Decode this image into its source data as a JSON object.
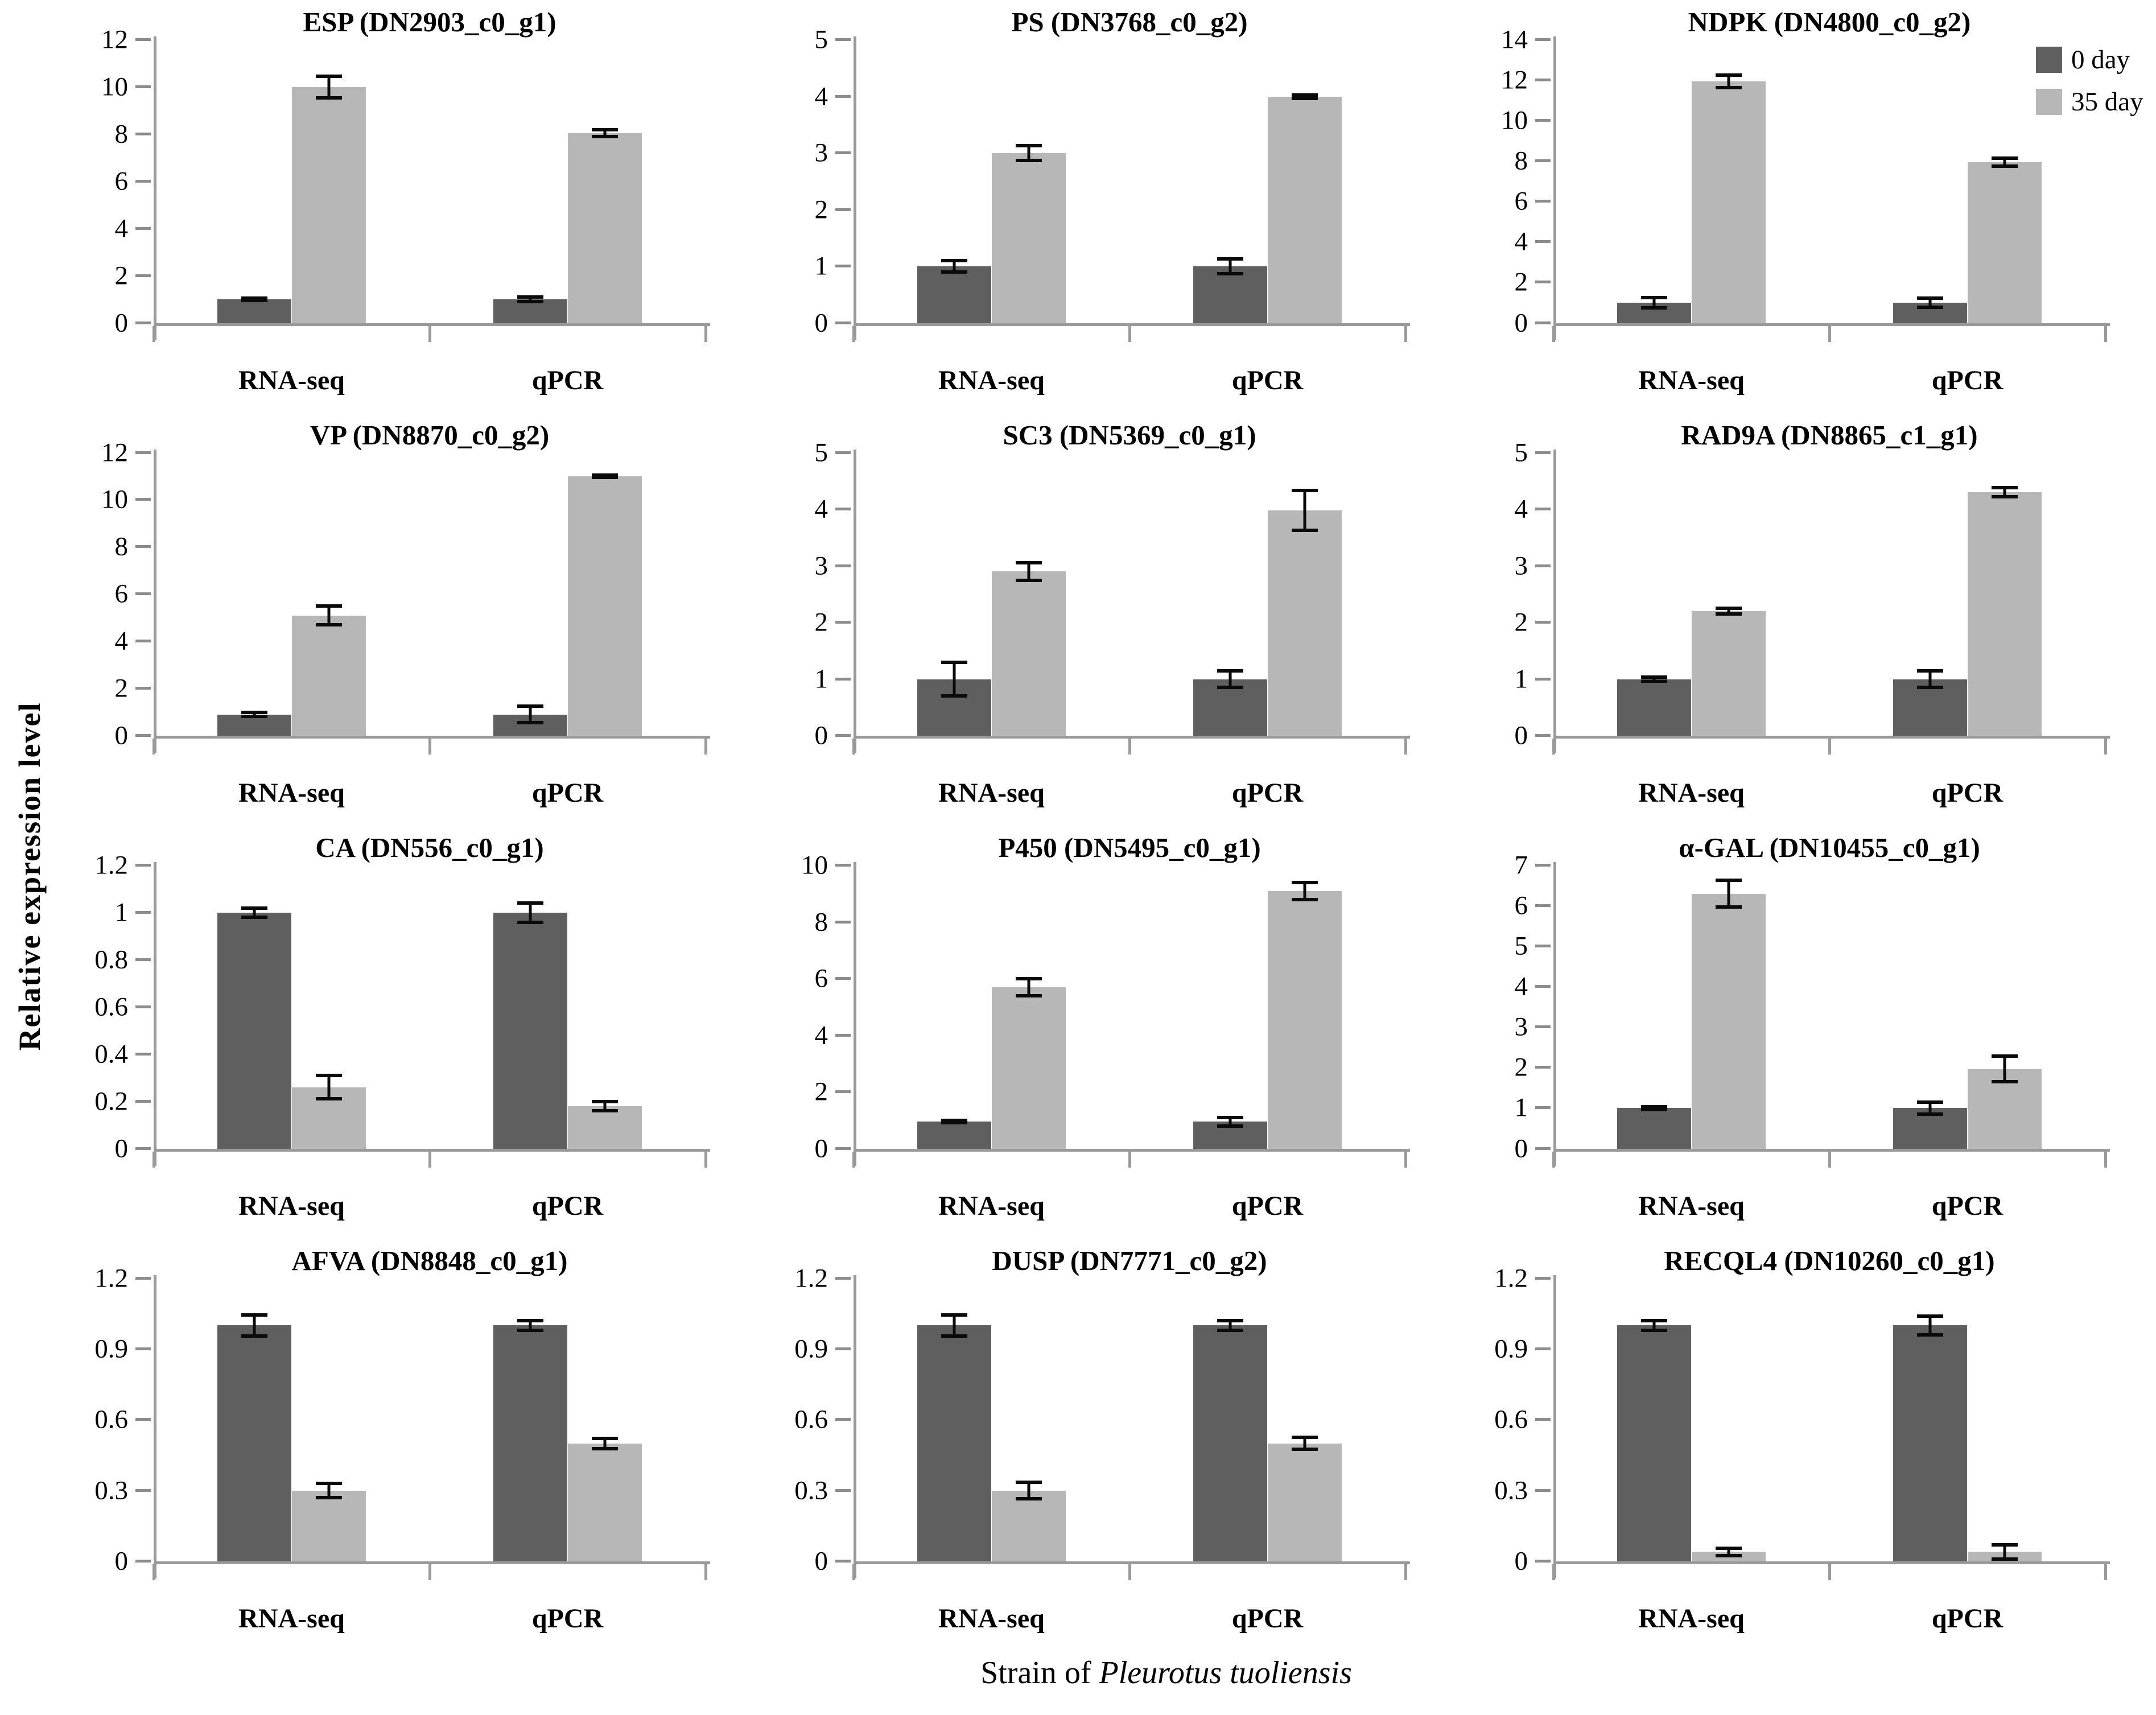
{
  "figure": {
    "y_axis_label": "Relative expression level",
    "caption": {
      "prefix": "Strain of ",
      "species": "Pleurotus tuoliensis"
    },
    "colors": {
      "day0": "#5f5f5f",
      "day35": "#b7b7b7",
      "axis": "#9a9a9a",
      "error_bar": "#0a0a0a",
      "text": "#000000",
      "background": "#ffffff"
    }
  },
  "chart_data": {
    "type": "bar",
    "categories": [
      "RNA-seq",
      "qPCR"
    ],
    "series_names": [
      "0 day",
      "35 day"
    ],
    "legend_position": "top-right",
    "grid": "off",
    "layout": "4 rows x 3 columns",
    "panels": [
      {
        "title": "ESP (DN2903_c0_g1)",
        "ylim": [
          0,
          12
        ],
        "yticks": [
          0,
          2,
          4,
          6,
          8,
          10,
          12
        ],
        "ytick_labels": [
          "0",
          "2",
          "4",
          "6",
          "8",
          "10",
          "12"
        ],
        "series": [
          {
            "name": "0 day",
            "values": [
              1.0,
              1.0
            ],
            "errors": [
              0.05,
              0.1
            ]
          },
          {
            "name": "35 day",
            "values": [
              10.0,
              8.05
            ],
            "errors": [
              0.45,
              0.15
            ]
          }
        ]
      },
      {
        "title": "PS (DN3768_c0_g2)",
        "ylim": [
          0,
          5
        ],
        "yticks": [
          0,
          1,
          2,
          3,
          4,
          5
        ],
        "ytick_labels": [
          "0",
          "1",
          "2",
          "3",
          "4",
          "5"
        ],
        "series": [
          {
            "name": "0 day",
            "values": [
              1.0,
              1.0
            ],
            "errors": [
              0.1,
              0.13
            ]
          },
          {
            "name": "35 day",
            "values": [
              3.0,
              4.0
            ],
            "errors": [
              0.13,
              0.03
            ]
          }
        ]
      },
      {
        "title": "NDPK (DN4800_c0_g2)",
        "ylim": [
          0,
          14
        ],
        "yticks": [
          0,
          2,
          4,
          6,
          8,
          10,
          12,
          14
        ],
        "ytick_labels": [
          "0",
          "2",
          "4",
          "6",
          "8",
          "10",
          "12",
          "14"
        ],
        "series": [
          {
            "name": "0 day",
            "values": [
              1.0,
              1.0
            ],
            "errors": [
              0.25,
              0.22
            ]
          },
          {
            "name": "35 day",
            "values": [
              11.95,
              7.95
            ],
            "errors": [
              0.3,
              0.2
            ]
          }
        ]
      },
      {
        "title": "VP (DN8870_c0_g2)",
        "ylim": [
          0,
          12
        ],
        "yticks": [
          0,
          2,
          4,
          6,
          8,
          10,
          12
        ],
        "ytick_labels": [
          "0",
          "2",
          "4",
          "6",
          "8",
          "10",
          "12"
        ],
        "series": [
          {
            "name": "0 day",
            "values": [
              0.9,
              0.9
            ],
            "errors": [
              0.08,
              0.35
            ]
          },
          {
            "name": "35 day",
            "values": [
              5.1,
              11.0
            ],
            "errors": [
              0.4,
              0.05
            ]
          }
        ]
      },
      {
        "title": "SC3 (DN5369_c0_g1)",
        "ylim": [
          0,
          5
        ],
        "yticks": [
          0,
          1,
          2,
          3,
          4,
          5
        ],
        "ytick_labels": [
          "0",
          "1",
          "2",
          "3",
          "4",
          "5"
        ],
        "series": [
          {
            "name": "0 day",
            "values": [
              1.0,
              1.0
            ],
            "errors": [
              0.3,
              0.15
            ]
          },
          {
            "name": "35 day",
            "values": [
              2.9,
              3.98
            ],
            "errors": [
              0.16,
              0.35
            ]
          }
        ]
      },
      {
        "title": "RAD9A (DN8865_c1_g1)",
        "ylim": [
          0,
          5
        ],
        "yticks": [
          0,
          1,
          2,
          3,
          4,
          5
        ],
        "ytick_labels": [
          "0",
          "1",
          "2",
          "3",
          "4",
          "5"
        ],
        "series": [
          {
            "name": "0 day",
            "values": [
              1.0,
              1.0
            ],
            "errors": [
              0.04,
              0.15
            ]
          },
          {
            "name": "35 day",
            "values": [
              2.2,
              4.3
            ],
            "errors": [
              0.05,
              0.08
            ]
          }
        ]
      },
      {
        "title": "CA (DN556_c0_g1)",
        "ylim": [
          0,
          1.2
        ],
        "yticks": [
          0,
          0.2,
          0.4,
          0.6,
          0.8,
          1,
          1.2
        ],
        "ytick_labels": [
          "0",
          "0.2",
          "0.4",
          "0.6",
          "0.8",
          "1",
          "1.2"
        ],
        "series": [
          {
            "name": "0 day",
            "values": [
              1.0,
              1.0
            ],
            "errors": [
              0.02,
              0.04
            ]
          },
          {
            "name": "35 day",
            "values": [
              0.26,
              0.18
            ],
            "errors": [
              0.05,
              0.02
            ]
          }
        ]
      },
      {
        "title": "P450 (DN5495_c0_g1)",
        "ylim": [
          0,
          10
        ],
        "yticks": [
          0,
          2,
          4,
          6,
          8,
          10
        ],
        "ytick_labels": [
          "0",
          "2",
          "4",
          "6",
          "8",
          "10"
        ],
        "series": [
          {
            "name": "0 day",
            "values": [
              0.95,
              0.95
            ],
            "errors": [
              0.04,
              0.15
            ]
          },
          {
            "name": "35 day",
            "values": [
              5.7,
              9.1
            ],
            "errors": [
              0.3,
              0.3
            ]
          }
        ]
      },
      {
        "title": "α-GAL (DN10455_c0_g1)",
        "ylim": [
          0,
          7
        ],
        "yticks": [
          0,
          1,
          2,
          3,
          4,
          5,
          6,
          7
        ],
        "ytick_labels": [
          "0",
          "1",
          "2",
          "3",
          "4",
          "5",
          "6",
          "7"
        ],
        "series": [
          {
            "name": "0 day",
            "values": [
              1.0,
              1.0
            ],
            "errors": [
              0.03,
              0.15
            ]
          },
          {
            "name": "35 day",
            "values": [
              6.3,
              1.97
            ],
            "errors": [
              0.33,
              0.32
            ]
          }
        ]
      },
      {
        "title": "AFVA (DN8848_c0_g1)",
        "ylim": [
          0,
          1.2
        ],
        "yticks": [
          0,
          0.3,
          0.6,
          0.9,
          1.2
        ],
        "ytick_labels": [
          "0",
          "0.3",
          "0.6",
          "0.9",
          "1.2"
        ],
        "series": [
          {
            "name": "0 day",
            "values": [
              1.0,
              1.0
            ],
            "errors": [
              0.045,
              0.02
            ]
          },
          {
            "name": "35 day",
            "values": [
              0.3,
              0.5
            ],
            "errors": [
              0.03,
              0.022
            ]
          }
        ]
      },
      {
        "title": "DUSP (DN7771_c0_g2)",
        "ylim": [
          0,
          1.2
        ],
        "yticks": [
          0,
          0.3,
          0.6,
          0.9,
          1.2
        ],
        "ytick_labels": [
          "0",
          "0.3",
          "0.6",
          "0.9",
          "1.2"
        ],
        "series": [
          {
            "name": "0 day",
            "values": [
              1.0,
              1.0
            ],
            "errors": [
              0.045,
              0.02
            ]
          },
          {
            "name": "35 day",
            "values": [
              0.3,
              0.5
            ],
            "errors": [
              0.035,
              0.025
            ]
          }
        ]
      },
      {
        "title": "RECQL4 (DN10260_c0_g1)",
        "ylim": [
          0,
          1.2
        ],
        "yticks": [
          0,
          0.3,
          0.6,
          0.9,
          1.2
        ],
        "ytick_labels": [
          "0",
          "0.3",
          "0.6",
          "0.9",
          "1.2"
        ],
        "series": [
          {
            "name": "0 day",
            "values": [
              1.0,
              1.0
            ],
            "errors": [
              0.02,
              0.04
            ]
          },
          {
            "name": "35 day",
            "values": [
              0.04,
              0.04
            ],
            "errors": [
              0.015,
              0.03
            ]
          }
        ]
      }
    ]
  }
}
